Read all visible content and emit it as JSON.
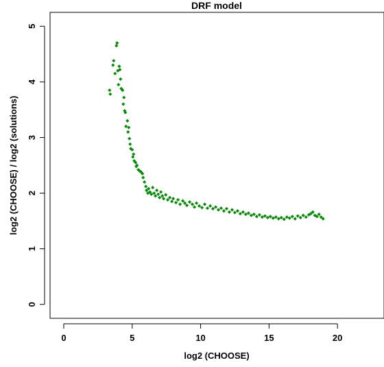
{
  "chart_data": {
    "type": "scatter",
    "title": "DRF model",
    "xlabel": "log2 (CHOOSE)",
    "ylabel": "log2 (CHOOSE) / log2 (solutions)",
    "xlim": [
      -1,
      23.4
    ],
    "ylim": [
      -0.25,
      5.25
    ],
    "xticks": [
      0,
      5,
      10,
      15,
      20
    ],
    "yticks": [
      0,
      1,
      2,
      3,
      4,
      5
    ],
    "grid": false,
    "marker_color": "#0a8a0a",
    "series": [
      {
        "points": [
          [
            3.35,
            3.85
          ],
          [
            3.4,
            3.78
          ],
          [
            3.6,
            4.3
          ],
          [
            3.65,
            4.38
          ],
          [
            3.75,
            4.15
          ],
          [
            3.85,
            4.65
          ],
          [
            3.9,
            4.7
          ],
          [
            3.95,
            4.2
          ],
          [
            4.0,
            3.95
          ],
          [
            4.05,
            4.28
          ],
          [
            4.1,
            4.22
          ],
          [
            4.15,
            4.05
          ],
          [
            4.2,
            3.88
          ],
          [
            4.3,
            3.85
          ],
          [
            4.35,
            3.6
          ],
          [
            4.4,
            3.72
          ],
          [
            4.45,
            3.48
          ],
          [
            4.5,
            3.45
          ],
          [
            4.55,
            3.2
          ],
          [
            4.65,
            3.3
          ],
          [
            4.7,
            3.1
          ],
          [
            4.75,
            3.18
          ],
          [
            4.8,
            2.98
          ],
          [
            4.85,
            2.88
          ],
          [
            4.9,
            2.8
          ],
          [
            5.0,
            2.78
          ],
          [
            5.05,
            2.65
          ],
          [
            5.1,
            2.7
          ],
          [
            5.15,
            2.58
          ],
          [
            5.25,
            2.55
          ],
          [
            5.3,
            2.48
          ],
          [
            5.35,
            2.5
          ],
          [
            5.45,
            2.42
          ],
          [
            5.55,
            2.4
          ],
          [
            5.65,
            2.38
          ],
          [
            5.75,
            2.35
          ],
          [
            5.8,
            2.28
          ],
          [
            5.9,
            2.2
          ],
          [
            6.0,
            2.12
          ],
          [
            6.05,
            2.05
          ],
          [
            6.15,
            2.0
          ],
          [
            6.2,
            2.08
          ],
          [
            6.3,
            2.02
          ],
          [
            6.4,
            1.98
          ],
          [
            6.5,
            2.1
          ],
          [
            6.6,
            2.0
          ],
          [
            6.7,
            1.95
          ],
          [
            6.8,
            2.05
          ],
          [
            6.9,
            1.98
          ],
          [
            7.0,
            1.92
          ],
          [
            7.1,
            2.02
          ],
          [
            7.2,
            1.95
          ],
          [
            7.3,
            1.9
          ],
          [
            7.45,
            1.97
          ],
          [
            7.6,
            1.88
          ],
          [
            7.75,
            1.92
          ],
          [
            7.9,
            1.85
          ],
          [
            8.0,
            1.9
          ],
          [
            8.2,
            1.83
          ],
          [
            8.35,
            1.88
          ],
          [
            8.5,
            1.8
          ],
          [
            8.7,
            1.86
          ],
          [
            8.85,
            1.82
          ],
          [
            9.0,
            1.78
          ],
          [
            9.2,
            1.84
          ],
          [
            9.4,
            1.8
          ],
          [
            9.55,
            1.75
          ],
          [
            9.7,
            1.82
          ],
          [
            9.9,
            1.77
          ],
          [
            10.1,
            1.74
          ],
          [
            10.3,
            1.8
          ],
          [
            10.5,
            1.73
          ],
          [
            10.7,
            1.77
          ],
          [
            10.9,
            1.72
          ],
          [
            11.1,
            1.75
          ],
          [
            11.3,
            1.7
          ],
          [
            11.5,
            1.73
          ],
          [
            11.7,
            1.68
          ],
          [
            11.9,
            1.72
          ],
          [
            12.1,
            1.66
          ],
          [
            12.3,
            1.7
          ],
          [
            12.5,
            1.65
          ],
          [
            12.7,
            1.68
          ],
          [
            12.9,
            1.63
          ],
          [
            13.1,
            1.66
          ],
          [
            13.3,
            1.62
          ],
          [
            13.5,
            1.64
          ],
          [
            13.7,
            1.6
          ],
          [
            13.9,
            1.62
          ],
          [
            14.1,
            1.58
          ],
          [
            14.3,
            1.61
          ],
          [
            14.5,
            1.57
          ],
          [
            14.7,
            1.59
          ],
          [
            14.9,
            1.56
          ],
          [
            15.1,
            1.58
          ],
          [
            15.3,
            1.55
          ],
          [
            15.5,
            1.57
          ],
          [
            15.7,
            1.54
          ],
          [
            15.9,
            1.56
          ],
          [
            16.1,
            1.53
          ],
          [
            16.3,
            1.57
          ],
          [
            16.5,
            1.55
          ],
          [
            16.7,
            1.58
          ],
          [
            16.9,
            1.54
          ],
          [
            17.1,
            1.59
          ],
          [
            17.3,
            1.56
          ],
          [
            17.5,
            1.6
          ],
          [
            17.7,
            1.57
          ],
          [
            17.9,
            1.61
          ],
          [
            18.05,
            1.63
          ],
          [
            18.2,
            1.66
          ],
          [
            18.35,
            1.6
          ],
          [
            18.5,
            1.58
          ],
          [
            18.65,
            1.62
          ],
          [
            18.8,
            1.57
          ],
          [
            18.95,
            1.54
          ]
        ]
      }
    ]
  }
}
